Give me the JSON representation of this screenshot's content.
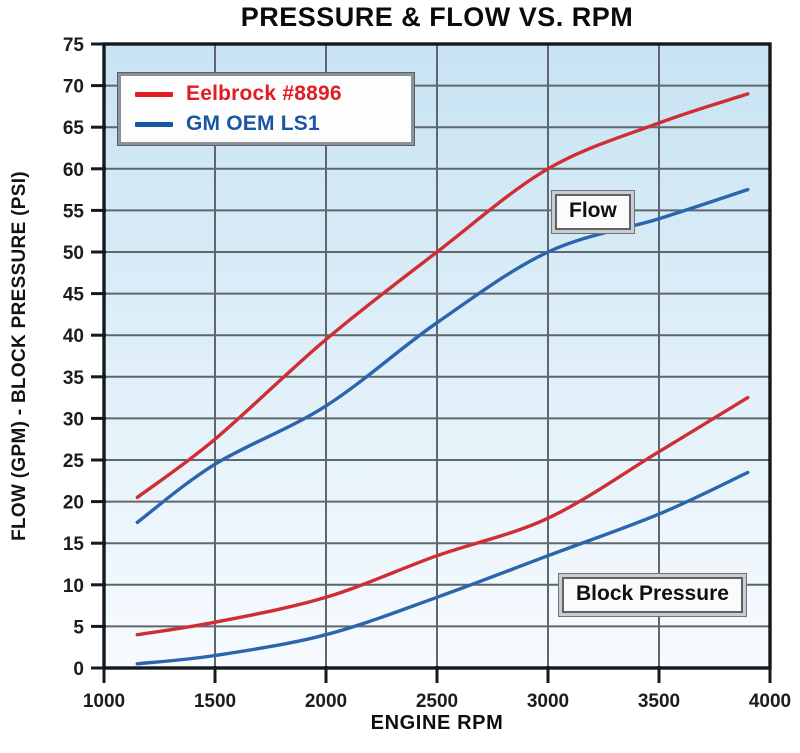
{
  "title": "PRESSURE & FLOW VS. RPM",
  "legend": {
    "items": [
      {
        "label": "Eelbrock #8896",
        "color": "#e01d24"
      },
      {
        "label": "GM OEM LS1",
        "color": "#1a56a7"
      }
    ]
  },
  "annotations": {
    "flow": "Flow",
    "block_pressure": "Block Pressure"
  },
  "colors": {
    "red_line": "#cf2e34",
    "blue_line": "#2a65ae",
    "grid": "#5f666c",
    "border": "#15191d",
    "plot_bg_top": "#c7e3f3",
    "plot_bg_bottom": "#f7fbfe",
    "tick_text": "#1c1c1c"
  },
  "chart_data": {
    "type": "line",
    "title": "PRESSURE & FLOW VS. RPM",
    "xlabel": "ENGINE RPM",
    "ylabel": "FLOW (GPM) - BLOCK PRESSURE (PSI)",
    "xlim": [
      1000,
      4000
    ],
    "ylim": [
      0,
      75
    ],
    "x_ticks": [
      1000,
      1500,
      2000,
      2500,
      3000,
      3500,
      4000
    ],
    "y_ticks": [
      0,
      5,
      10,
      15,
      20,
      25,
      30,
      35,
      40,
      45,
      50,
      55,
      60,
      65,
      70,
      75
    ],
    "grid": true,
    "legend_position": "top-left",
    "x": [
      1150,
      1500,
      2000,
      2500,
      3000,
      3500,
      3900
    ],
    "series": [
      {
        "name": "Eelbrock #8896 Flow",
        "group": "Flow",
        "color": "#cf2e34",
        "values": [
          20.5,
          27.5,
          39.5,
          50,
          60,
          65.5,
          69
        ]
      },
      {
        "name": "GM OEM LS1 Flow",
        "group": "Flow",
        "color": "#2a65ae",
        "values": [
          17.5,
          24.5,
          31.5,
          41.5,
          50,
          54,
          57.5
        ]
      },
      {
        "name": "Eelbrock #8896 Block Pressure",
        "group": "Block Pressure",
        "color": "#cf2e34",
        "values": [
          4,
          5.5,
          8.5,
          13.5,
          18,
          26,
          32.5
        ]
      },
      {
        "name": "GM OEM LS1 Block Pressure",
        "group": "Block Pressure",
        "color": "#2a65ae",
        "values": [
          0.5,
          1.5,
          4,
          8.5,
          13.5,
          18.5,
          23.5
        ]
      }
    ]
  }
}
